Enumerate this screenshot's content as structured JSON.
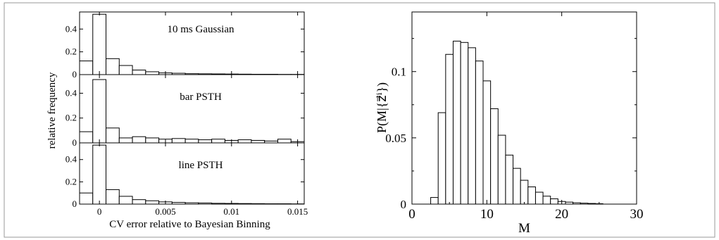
{
  "chart_data": [
    {
      "type": "bar",
      "panel": "left-top",
      "annotation": "10 ms Gaussian",
      "x": [
        -0.001,
        0.0,
        0.001,
        0.002,
        0.003,
        0.004,
        0.005,
        0.006,
        0.007,
        0.008,
        0.009,
        0.01,
        0.011,
        0.012,
        0.013,
        0.014,
        0.015
      ],
      "values": [
        0.12,
        0.53,
        0.14,
        0.08,
        0.04,
        0.025,
        0.015,
        0.012,
        0.008,
        0.007,
        0.006,
        0.005,
        0.004,
        0.003,
        0.003,
        0.002,
        0.002
      ],
      "xlim": [
        -0.0015,
        0.0155
      ],
      "ylim": [
        0,
        0.55
      ],
      "yticks": [
        "0",
        "0.2",
        "0.4"
      ]
    },
    {
      "type": "bar",
      "panel": "left-middle",
      "annotation": "bar PSTH",
      "x": [
        -0.001,
        0.0,
        0.001,
        0.002,
        0.003,
        0.004,
        0.005,
        0.006,
        0.007,
        0.008,
        0.009,
        0.01,
        0.011,
        0.012,
        0.013,
        0.014,
        0.015
      ],
      "values": [
        0.09,
        0.51,
        0.12,
        0.04,
        0.05,
        0.04,
        0.03,
        0.035,
        0.03,
        0.025,
        0.03,
        0.02,
        0.025,
        0.02,
        0.015,
        0.03,
        0.01
      ],
      "xlim": [
        -0.0015,
        0.0155
      ],
      "ylim": [
        0,
        0.55
      ],
      "yticks": [
        "0",
        "0.2",
        "0.4"
      ],
      "ylabel": "relative frequency"
    },
    {
      "type": "bar",
      "panel": "left-bottom",
      "annotation": "line PSTH",
      "x": [
        -0.001,
        0.0,
        0.001,
        0.002,
        0.003,
        0.004,
        0.005,
        0.006,
        0.007,
        0.008,
        0.009,
        0.01,
        0.011,
        0.012,
        0.013,
        0.014,
        0.015
      ],
      "values": [
        0.1,
        0.53,
        0.13,
        0.07,
        0.04,
        0.03,
        0.02,
        0.015,
        0.012,
        0.01,
        0.007,
        0.006,
        0.005,
        0.004,
        0.003,
        0.003,
        0.002
      ],
      "xlim": [
        -0.0015,
        0.0155
      ],
      "ylim": [
        0,
        0.55
      ],
      "yticks": [
        "0",
        "0.2",
        "0.4"
      ],
      "xticks": [
        0,
        0.005,
        0.01,
        0.015
      ],
      "xticklabels": [
        "0",
        "0.005",
        "0.01",
        "0.015"
      ],
      "xlabel": "CV error relative to Bayesian Binning"
    },
    {
      "type": "bar",
      "panel": "right",
      "x": [
        3,
        4,
        5,
        6,
        7,
        8,
        9,
        10,
        11,
        12,
        13,
        14,
        15,
        16,
        17,
        18,
        19,
        20,
        21,
        22,
        23,
        24,
        25
      ],
      "values": [
        0.005,
        0.069,
        0.113,
        0.123,
        0.122,
        0.118,
        0.108,
        0.093,
        0.072,
        0.052,
        0.037,
        0.027,
        0.018,
        0.013,
        0.009,
        0.006,
        0.004,
        0.002,
        0.0015,
        0.001,
        0.0007,
        0.0005,
        0.0003
      ],
      "xlim": [
        0,
        30
      ],
      "ylim": [
        0,
        0.145
      ],
      "xticks": [
        0,
        10,
        20,
        30
      ],
      "xticklabels": [
        "0",
        "10",
        "20",
        "30"
      ],
      "yticks": [
        0,
        0.05,
        0.1
      ],
      "yticklabels": [
        "0",
        "0.05",
        "0.1"
      ],
      "xlabel": "M",
      "ylabel": "P(M|{z⃗ⁱ})"
    }
  ]
}
